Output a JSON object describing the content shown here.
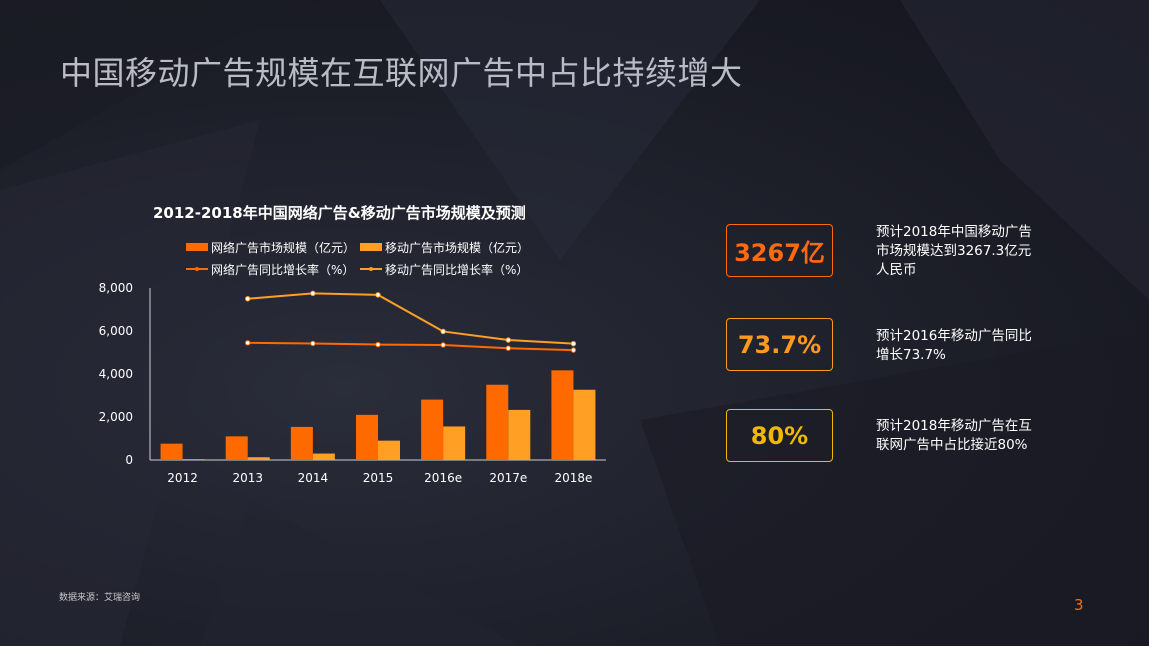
{
  "slide": {
    "title": "中国移动广告规模在互联网广告中占比持续增大",
    "source": "数据来源：艾瑞咨询",
    "page_number": "3"
  },
  "kpis": [
    {
      "value": "3267亿",
      "desc_lines": [
        "预计2018年中国移动广告",
        "市场规模达到3267.3亿元",
        "人民币"
      ],
      "color": "#ff6a10"
    },
    {
      "value": "73.7%",
      "desc_lines": [
        "预计2016年移动广告同比",
        "增长73.7%"
      ],
      "color": "#ff9a1f"
    },
    {
      "value": "80%",
      "desc_lines": [
        "预计2018年移动广告在互",
        "联网广告中占比接近80%"
      ],
      "color": "#f0b800"
    }
  ],
  "chart_data": {
    "type": "bar",
    "title": "2012-2018年中国网络广告&移动广告市场规模及预测",
    "categories": [
      "2012",
      "2013",
      "2014",
      "2015",
      "2016e",
      "2017e",
      "2018e"
    ],
    "ylim": [
      0,
      8000
    ],
    "yticks": [
      "0",
      "2,000",
      "4,000",
      "6,000",
      "8,000"
    ],
    "ytick_values": [
      0,
      2000,
      4000,
      6000,
      8000
    ],
    "grid": false,
    "legend_position": "top",
    "series": [
      {
        "name": "网络广告市场规模（亿元）",
        "kind": "bar",
        "color": "#ff6a00",
        "values": [
          760,
          1100,
          1540,
          2100,
          2810,
          3500,
          4170
        ]
      },
      {
        "name": "移动广告市场规模（亿元）",
        "kind": "bar",
        "color": "#ff9f24",
        "values": [
          40,
          130,
          300,
          900,
          1560,
          2330,
          3267
        ]
      },
      {
        "name": "网络广告同比增长率（%）",
        "kind": "line",
        "color": "#ff6a00",
        "values": [
          null,
          5450,
          5420,
          5370,
          5350,
          5200,
          5110
        ]
      },
      {
        "name": "移动广告同比增长率（%）",
        "kind": "line",
        "color": "#ff9f24",
        "values": [
          null,
          7500,
          7750,
          7680,
          5980,
          5580,
          5410
        ]
      }
    ]
  }
}
